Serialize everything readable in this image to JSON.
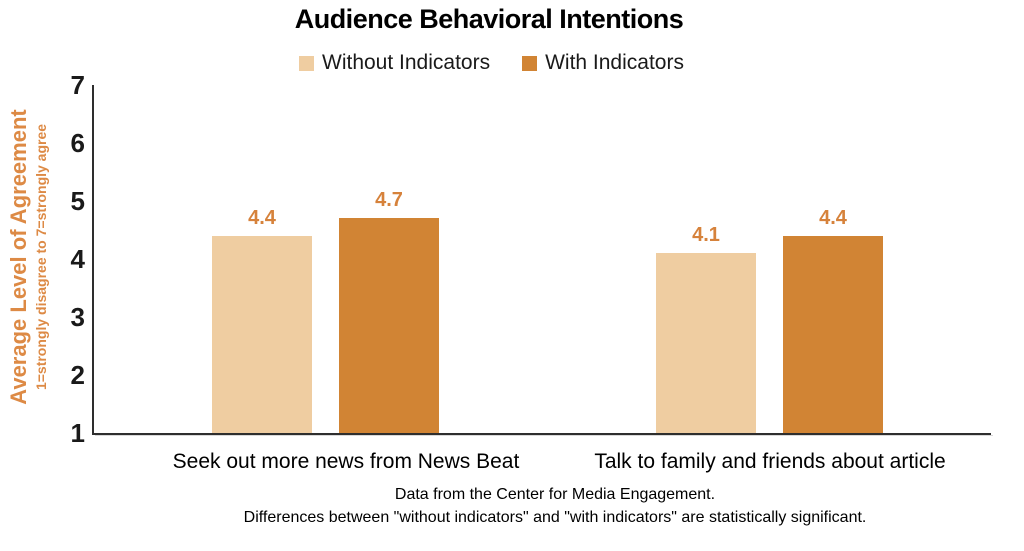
{
  "title": "Audience Behavioral Intentions",
  "y_axis": {
    "title": "Average Level of Agreement",
    "subtitle": "1=strongly disagree to 7=strongly agree",
    "ticks": [
      7,
      6,
      5,
      4,
      3,
      2,
      1
    ],
    "min": 1,
    "max": 7
  },
  "chart_data": {
    "type": "bar",
    "title": "Audience Behavioral Intentions",
    "categories": [
      "Seek out more news from News Beat",
      "Talk to family and friends about article"
    ],
    "series": [
      {
        "name": "Without Indicators",
        "color": "#EFCDA1",
        "values": [
          4.4,
          4.1
        ]
      },
      {
        "name": "With Indicators",
        "color": "#D18434",
        "values": [
          4.7,
          4.4
        ]
      }
    ],
    "data_labels": [
      [
        "4.4",
        "4.1"
      ],
      [
        "4.7",
        "4.4"
      ]
    ],
    "ylabel": "Average Level of Agreement",
    "ylabel_note": "1=strongly disagree to 7=strongly agree",
    "ylim": [
      1,
      7
    ],
    "grid": false,
    "legend_position": "top"
  },
  "footer": {
    "line1": "Data from the Center for Media Engagement.",
    "line2": "Differences between \"without indicators\" and \"with indicators\" are statistically significant."
  },
  "colors": {
    "without_indicators": "#EFCDA1",
    "with_indicators": "#D18434",
    "axis_title_orange": "#DD8A45",
    "data_label_orange": "#D6823B",
    "axis_line": "#2E2E2E",
    "text": "#000000"
  }
}
